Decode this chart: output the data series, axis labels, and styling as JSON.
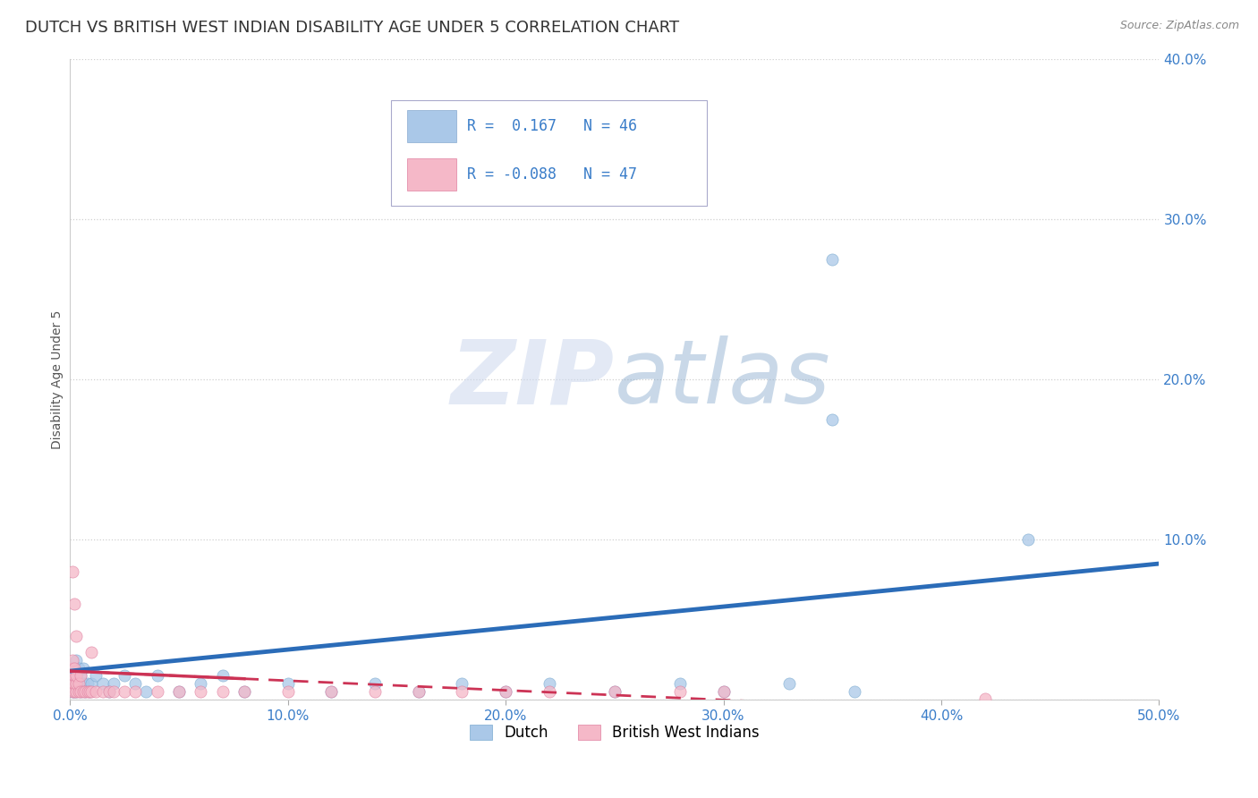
{
  "title": "DUTCH VS BRITISH WEST INDIAN DISABILITY AGE UNDER 5 CORRELATION CHART",
  "source": "Source: ZipAtlas.com",
  "ylabel": "Disability Age Under 5",
  "xlim": [
    0.0,
    0.5
  ],
  "ylim": [
    0.0,
    0.4
  ],
  "xticks": [
    0.0,
    0.1,
    0.2,
    0.3,
    0.4,
    0.5
  ],
  "yticks": [
    0.0,
    0.1,
    0.2,
    0.3,
    0.4
  ],
  "dutch_R": 0.167,
  "dutch_N": 46,
  "bwi_R": -0.088,
  "bwi_N": 47,
  "dutch_color": "#aac8e8",
  "dutch_line_color": "#2b6cb8",
  "bwi_color": "#f5b8c8",
  "bwi_line_color": "#cc3355",
  "background_color": "#ffffff",
  "grid_color": "#d0d0d0",
  "title_fontsize": 13,
  "axis_label_fontsize": 10,
  "tick_fontsize": 11,
  "legend_fontsize": 12,
  "tick_color": "#3a7dc9",
  "dutch_x": [
    0.001,
    0.001,
    0.001,
    0.002,
    0.002,
    0.002,
    0.003,
    0.003,
    0.003,
    0.004,
    0.004,
    0.005,
    0.005,
    0.006,
    0.006,
    0.007,
    0.008,
    0.009,
    0.01,
    0.012,
    0.015,
    0.018,
    0.02,
    0.025,
    0.03,
    0.035,
    0.04,
    0.05,
    0.06,
    0.07,
    0.08,
    0.1,
    0.12,
    0.14,
    0.16,
    0.18,
    0.2,
    0.22,
    0.25,
    0.28,
    0.3,
    0.33,
    0.36,
    0.35,
    0.35,
    0.44
  ],
  "dutch_y": [
    0.005,
    0.01,
    0.015,
    0.005,
    0.01,
    0.02,
    0.005,
    0.015,
    0.025,
    0.01,
    0.02,
    0.005,
    0.015,
    0.01,
    0.02,
    0.005,
    0.01,
    0.005,
    0.01,
    0.015,
    0.01,
    0.005,
    0.01,
    0.015,
    0.01,
    0.005,
    0.015,
    0.005,
    0.01,
    0.015,
    0.005,
    0.01,
    0.005,
    0.01,
    0.005,
    0.01,
    0.005,
    0.01,
    0.005,
    0.01,
    0.005,
    0.01,
    0.005,
    0.175,
    0.275,
    0.1
  ],
  "bwi_x": [
    0.001,
    0.001,
    0.001,
    0.001,
    0.001,
    0.002,
    0.002,
    0.002,
    0.002,
    0.003,
    0.003,
    0.003,
    0.004,
    0.004,
    0.005,
    0.005,
    0.006,
    0.007,
    0.008,
    0.009,
    0.01,
    0.012,
    0.015,
    0.018,
    0.02,
    0.025,
    0.03,
    0.04,
    0.05,
    0.06,
    0.07,
    0.08,
    0.1,
    0.12,
    0.14,
    0.16,
    0.18,
    0.2,
    0.22,
    0.25,
    0.28,
    0.3,
    0.001,
    0.002,
    0.003,
    0.42,
    0.01
  ],
  "bwi_y": [
    0.005,
    0.01,
    0.015,
    0.02,
    0.025,
    0.005,
    0.01,
    0.015,
    0.02,
    0.005,
    0.01,
    0.015,
    0.005,
    0.01,
    0.005,
    0.015,
    0.005,
    0.005,
    0.005,
    0.005,
    0.005,
    0.005,
    0.005,
    0.005,
    0.005,
    0.005,
    0.005,
    0.005,
    0.005,
    0.005,
    0.005,
    0.005,
    0.005,
    0.005,
    0.005,
    0.005,
    0.005,
    0.005,
    0.005,
    0.005,
    0.005,
    0.005,
    0.08,
    0.06,
    0.04,
    0.001,
    0.03
  ],
  "dutch_line_x": [
    0.0,
    0.5
  ],
  "dutch_line_y": [
    0.018,
    0.085
  ],
  "bwi_line_x": [
    0.0,
    0.25
  ],
  "bwi_line_y": [
    0.018,
    0.003
  ]
}
